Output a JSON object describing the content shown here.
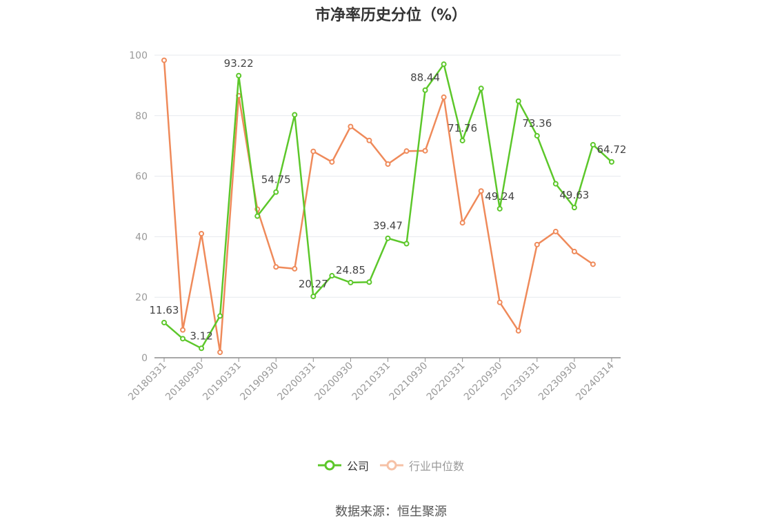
{
  "chart_data": {
    "type": "line",
    "title": "市净率历史分位（%）",
    "xlabel": "",
    "ylabel": "",
    "ylim": [
      0,
      100
    ],
    "yticks": [
      "0",
      "20",
      "40",
      "60",
      "80",
      "100"
    ],
    "grid": true,
    "legend_position": "bottom",
    "x": [
      "20180331",
      "20180630",
      "20180930",
      "20181231",
      "20190331",
      "20190630",
      "20190930",
      "20191231",
      "20200331",
      "20200630",
      "20200930",
      "20201231",
      "20210331",
      "20210630",
      "20210930",
      "20211231",
      "20220331",
      "20220630",
      "20220930",
      "20221231",
      "20230331",
      "20230630",
      "20230930",
      "20231231",
      "20240314"
    ],
    "x_tick_labels": [
      "20180331",
      "20180930",
      "20190331",
      "20190930",
      "20200331",
      "20200930",
      "20210331",
      "20210930",
      "20220331",
      "20220930",
      "20230331",
      "20230930",
      "20240314"
    ],
    "series": [
      {
        "name": "公司",
        "color": "#5cc72a",
        "values": [
          11.63,
          6.3,
          3.12,
          13.8,
          93.22,
          46.8,
          54.75,
          80.3,
          20.27,
          27.1,
          24.85,
          25.0,
          39.47,
          37.7,
          88.44,
          97.0,
          71.76,
          89.0,
          49.24,
          84.8,
          73.36,
          57.5,
          49.63,
          70.4,
          64.72
        ],
        "labels": [
          "11.63",
          "",
          "3.12",
          "",
          "93.22",
          "",
          "54.75",
          "",
          "20.27",
          "",
          "24.85",
          "",
          "39.47",
          "",
          "88.44",
          "",
          "71.76",
          "",
          "49.24",
          "",
          "73.36",
          "",
          "49.63",
          "",
          "64.72"
        ]
      },
      {
        "name": "行业中位数",
        "color": "#ef8a5a",
        "values": [
          98.3,
          9.2,
          41.0,
          1.8,
          86.6,
          49.1,
          30.0,
          29.4,
          68.2,
          64.7,
          76.4,
          71.8,
          64.0,
          68.3,
          68.4,
          86.1,
          44.6,
          55.1,
          18.3,
          8.9,
          37.4,
          41.7,
          35.1,
          30.9,
          null
        ]
      }
    ]
  },
  "source": "数据来源：恒生聚源"
}
